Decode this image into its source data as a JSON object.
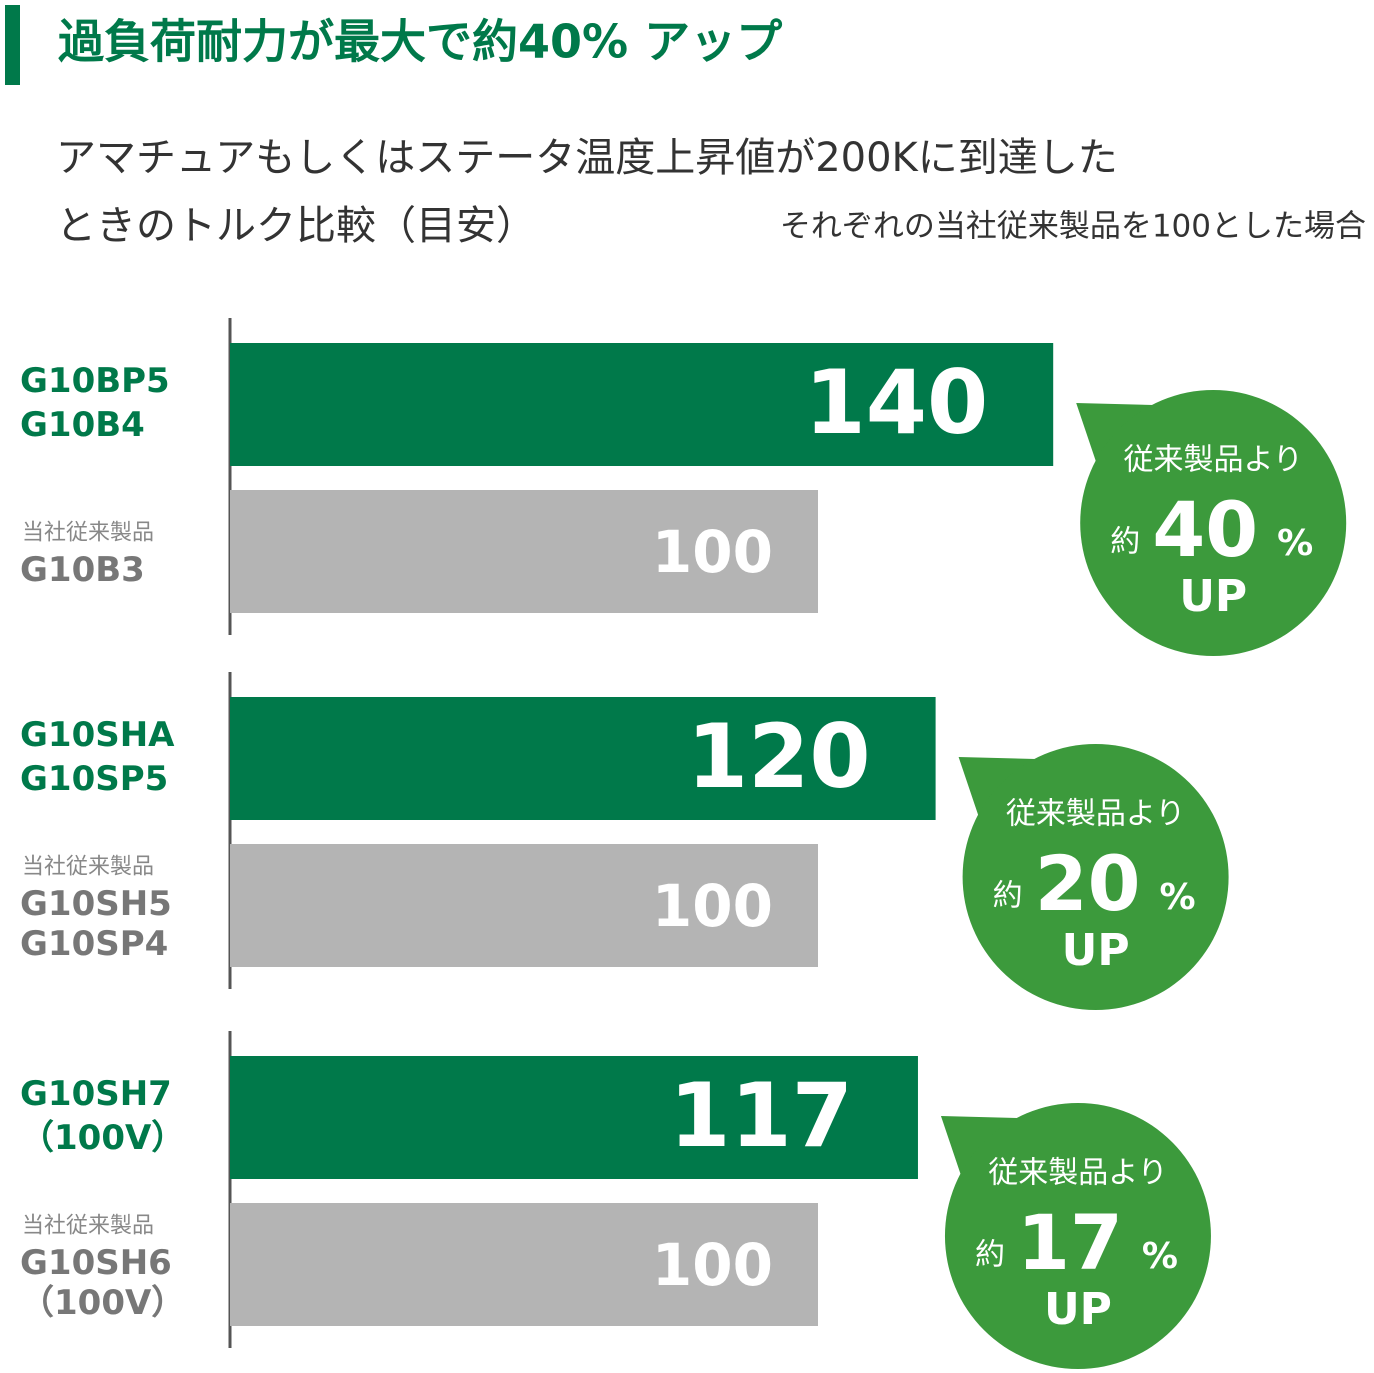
{
  "title": "過負荷耐力が最大で約40% アップ",
  "subtitle_lines": [
    "アマチュアもしくはステータ温度上昇値が200Kに到達した",
    "ときのトルク比較（目安）"
  ],
  "note": "それぞれの当社従来製品を100とした場合",
  "chart_data": {
    "type": "bar",
    "new_color": "#00794a",
    "old_color": "#b4b4b4",
    "badge_color": "#3c9a3c",
    "groups": [
      {
        "new_labels": [
          "G10BP5",
          "G10B4"
        ],
        "new_value": 140,
        "old_caption": "当社従来製品",
        "old_labels": [
          "G10B3"
        ],
        "old_value": 100,
        "badge": {
          "lead": "従来製品より",
          "prefix": "約",
          "percent": 40,
          "unit": "%",
          "suffix": "UP"
        }
      },
      {
        "new_labels": [
          "G10SHA",
          "G10SP5"
        ],
        "new_value": 120,
        "old_caption": "当社従来製品",
        "old_labels": [
          "G10SH5",
          "G10SP4"
        ],
        "old_value": 100,
        "badge": {
          "lead": "従来製品より",
          "prefix": "約",
          "percent": 20,
          "unit": "%",
          "suffix": "UP"
        }
      },
      {
        "new_labels": [
          "G10SH7",
          "（100V）"
        ],
        "new_value": 117,
        "old_caption": "当社従来製品",
        "old_labels": [
          "G10SH6",
          "（100V）"
        ],
        "old_value": 100,
        "badge": {
          "lead": "従来製品より",
          "prefix": "約",
          "percent": 17,
          "unit": "%",
          "suffix": "UP"
        }
      }
    ]
  }
}
